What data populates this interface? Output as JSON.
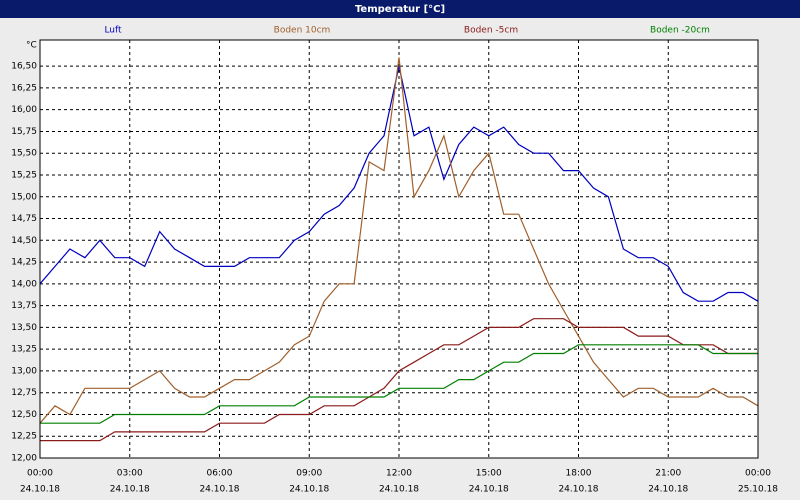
{
  "chart_data": {
    "type": "line",
    "title": "Temperatur [°C]",
    "y_label": "°C",
    "x": [
      0,
      0.5,
      1,
      1.5,
      2,
      2.5,
      3,
      3.5,
      4,
      4.5,
      5,
      5.5,
      6,
      6.5,
      7,
      7.5,
      8,
      8.5,
      9,
      9.5,
      10,
      10.5,
      11,
      11.5,
      12,
      12.5,
      13,
      13.5,
      14,
      14.5,
      15,
      15.5,
      16,
      16.5,
      17,
      17.5,
      18,
      18.5,
      19,
      19.5,
      20,
      20.5,
      21,
      21.5,
      22,
      22.5,
      23,
      23.5,
      24
    ],
    "series": [
      {
        "name": "Luft",
        "color": "#0000c0",
        "values": [
          14.0,
          14.2,
          14.4,
          14.3,
          14.5,
          14.3,
          14.3,
          14.2,
          14.6,
          14.4,
          14.3,
          14.2,
          14.2,
          14.2,
          14.3,
          14.3,
          14.3,
          14.5,
          14.6,
          14.8,
          14.9,
          15.1,
          15.5,
          15.7,
          16.5,
          15.7,
          15.8,
          15.2,
          15.6,
          15.8,
          15.7,
          15.8,
          15.6,
          15.5,
          15.5,
          15.3,
          15.3,
          15.1,
          15.0,
          14.4,
          14.3,
          14.3,
          14.2,
          13.9,
          13.8,
          13.8,
          13.9,
          13.9,
          13.8
        ]
      },
      {
        "name": "Boden 10cm",
        "color": "#a0602c",
        "values": [
          12.4,
          12.6,
          12.5,
          12.8,
          12.8,
          12.8,
          12.8,
          12.9,
          13.0,
          12.8,
          12.7,
          12.7,
          12.8,
          12.9,
          12.9,
          13.0,
          13.1,
          13.3,
          13.4,
          13.8,
          14.0,
          14.0,
          15.4,
          15.3,
          16.6,
          15.0,
          15.3,
          15.7,
          15.0,
          15.3,
          15.5,
          14.8,
          14.8,
          14.4,
          14.0,
          13.7,
          13.4,
          13.1,
          12.9,
          12.7,
          12.8,
          12.8,
          12.7,
          12.7,
          12.7,
          12.8,
          12.7,
          12.7,
          12.6
        ]
      },
      {
        "name": "Boden -5cm",
        "color": "#8b1a1a",
        "values": [
          12.2,
          12.2,
          12.2,
          12.2,
          12.2,
          12.3,
          12.3,
          12.3,
          12.3,
          12.3,
          12.3,
          12.3,
          12.4,
          12.4,
          12.4,
          12.4,
          12.5,
          12.5,
          12.5,
          12.6,
          12.6,
          12.6,
          12.7,
          12.8,
          13.0,
          13.1,
          13.2,
          13.3,
          13.3,
          13.4,
          13.5,
          13.5,
          13.5,
          13.6,
          13.6,
          13.6,
          13.5,
          13.5,
          13.5,
          13.5,
          13.4,
          13.4,
          13.4,
          13.3,
          13.3,
          13.3,
          13.2,
          13.2,
          13.2
        ]
      },
      {
        "name": "Boden -20cm",
        "color": "#008000",
        "values": [
          12.4,
          12.4,
          12.4,
          12.4,
          12.4,
          12.5,
          12.5,
          12.5,
          12.5,
          12.5,
          12.5,
          12.5,
          12.6,
          12.6,
          12.6,
          12.6,
          12.6,
          12.6,
          12.7,
          12.7,
          12.7,
          12.7,
          12.7,
          12.7,
          12.8,
          12.8,
          12.8,
          12.8,
          12.9,
          12.9,
          13.0,
          13.1,
          13.1,
          13.2,
          13.2,
          13.2,
          13.3,
          13.3,
          13.3,
          13.3,
          13.3,
          13.3,
          13.3,
          13.3,
          13.3,
          13.2,
          13.2,
          13.2,
          13.2
        ]
      }
    ],
    "xlim": [
      0,
      24
    ],
    "ylim": [
      12,
      16.8
    ],
    "xticks": [
      {
        "value": 0,
        "label": "00:00"
      },
      {
        "value": 3,
        "label": "03:00"
      },
      {
        "value": 6,
        "label": "06:00"
      },
      {
        "value": 9,
        "label": "09:00"
      },
      {
        "value": 12,
        "label": "12:00"
      },
      {
        "value": 15,
        "label": "15:00"
      },
      {
        "value": 18,
        "label": "18:00"
      },
      {
        "value": 21,
        "label": "21:00"
      },
      {
        "value": 24,
        "label": "00:00"
      }
    ],
    "xtick_dates": [
      "24.10.18",
      "24.10.18",
      "24.10.18",
      "24.10.18",
      "24.10.18",
      "24.10.18",
      "24.10.18",
      "24.10.18",
      "25.10.18"
    ],
    "yticks": [
      {
        "value": 12,
        "label": "12,00"
      },
      {
        "value": 12.25,
        "label": "12,25"
      },
      {
        "value": 12.5,
        "label": "12,50"
      },
      {
        "value": 12.75,
        "label": "12,75"
      },
      {
        "value": 13,
        "label": "13,00"
      },
      {
        "value": 13.25,
        "label": "13,25"
      },
      {
        "value": 13.5,
        "label": "13,50"
      },
      {
        "value": 13.75,
        "label": "13,75"
      },
      {
        "value": 14,
        "label": "14,00"
      },
      {
        "value": 14.25,
        "label": "14,25"
      },
      {
        "value": 14.5,
        "label": "14,50"
      },
      {
        "value": 14.75,
        "label": "14,75"
      },
      {
        "value": 15,
        "label": "15,00"
      },
      {
        "value": 15.25,
        "label": "15,25"
      },
      {
        "value": 15.5,
        "label": "15,50"
      },
      {
        "value": 15.75,
        "label": "15,75"
      },
      {
        "value": 16,
        "label": "16,00"
      },
      {
        "value": 16.25,
        "label": "16,25"
      },
      {
        "value": 16.5,
        "label": "16,50"
      }
    ],
    "grid": true
  }
}
